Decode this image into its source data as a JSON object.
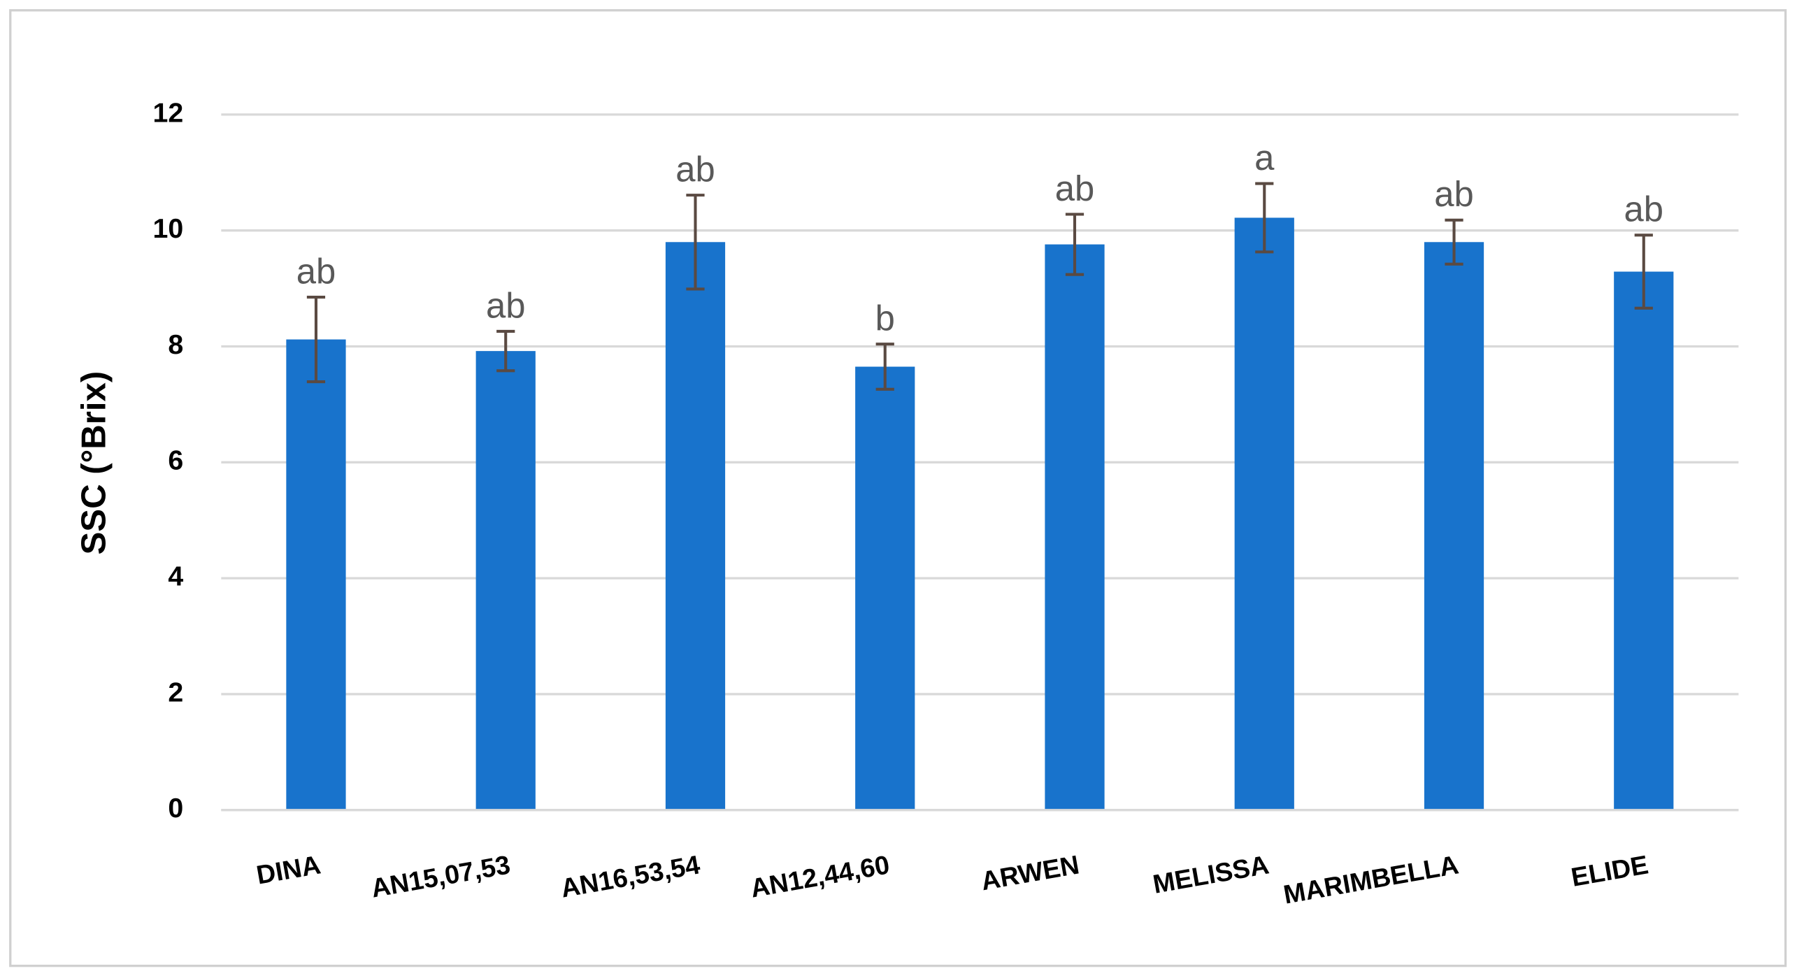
{
  "chart_data": {
    "type": "bar",
    "ylabel": "SSC (°Brix)",
    "categories": [
      "DINA",
      "AN15,07,53",
      "AN16,53,54",
      "AN12,44,60",
      "ARWEN",
      "MELISSA",
      "MARIMBELLA",
      "ELIDE"
    ],
    "values": [
      8.12,
      7.92,
      9.8,
      7.65,
      9.76,
      10.22,
      9.8,
      9.29
    ],
    "errors": [
      0.73,
      0.34,
      0.81,
      0.39,
      0.52,
      0.59,
      0.38,
      0.63
    ],
    "annotations": [
      "ab",
      "ab",
      "ab",
      "b",
      "ab",
      "a",
      "ab",
      "ab"
    ],
    "color": "#1873cc",
    "error_color": "#5a4a42",
    "ylim": [
      0,
      12
    ],
    "yticks": [
      0,
      2,
      4,
      6,
      8,
      10,
      12
    ],
    "grid": true
  }
}
